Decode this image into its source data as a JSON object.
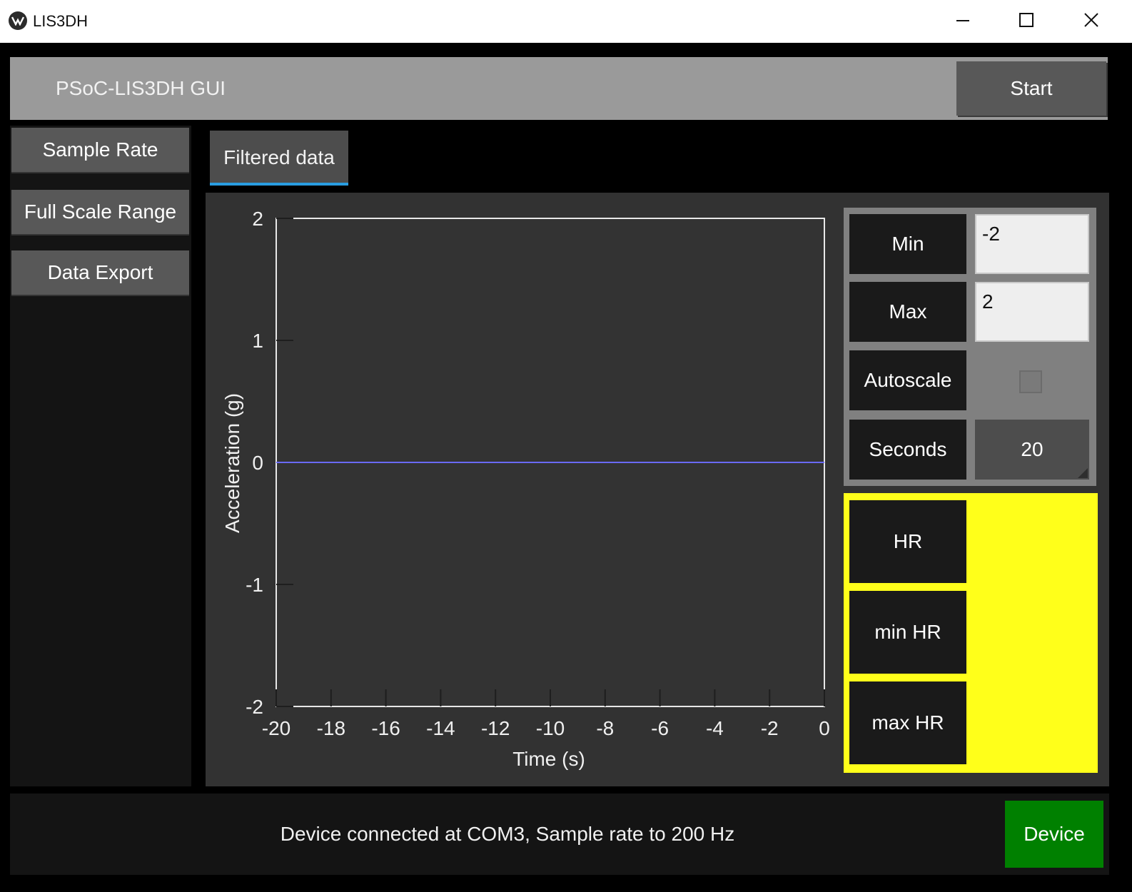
{
  "window": {
    "title": "LIS3DH",
    "icons": {
      "app": "app-logo-icon",
      "minimize": "minimize-icon",
      "maximize": "maximize-icon",
      "close": "close-icon"
    }
  },
  "header": {
    "title": "PSoC-LIS3DH GUI",
    "start_label": "Start"
  },
  "sidebar": {
    "items": [
      {
        "label": "Sample Rate"
      },
      {
        "label": "Full Scale Range"
      },
      {
        "label": "Data Export"
      }
    ]
  },
  "tabs": [
    {
      "label": "Filtered data",
      "active": true
    }
  ],
  "chart_data": {
    "type": "line",
    "xlabel": "Time (s)",
    "ylabel": "Acceleration (g)",
    "xlim": [
      -20,
      0
    ],
    "ylim": [
      -2,
      2
    ],
    "x_ticks": [
      "-20",
      "-18",
      "-16",
      "-14",
      "-12",
      "-10",
      "-8",
      "-6",
      "-4",
      "-2",
      "0"
    ],
    "y_ticks": [
      "2",
      "1",
      "0",
      "-1",
      "-2"
    ],
    "series": [
      {
        "x": [
          -20,
          0
        ],
        "y": [
          0,
          0
        ],
        "color": "#6a6aff"
      }
    ],
    "grid": false
  },
  "controls": {
    "min_label": "Min",
    "min_value": "-2",
    "max_label": "Max",
    "max_value": "2",
    "autoscale_label": "Autoscale",
    "autoscale_checked": false,
    "seconds_label": "Seconds",
    "seconds_value": "20"
  },
  "hr_panel": {
    "hr_label": "HR",
    "min_hr_label": "min HR",
    "max_hr_label": "max HR",
    "background_color": "#ffff1a"
  },
  "status": {
    "message": "Device connected at COM3, Sample rate to 200 Hz",
    "device_label": "Device",
    "device_color": "#008000"
  }
}
